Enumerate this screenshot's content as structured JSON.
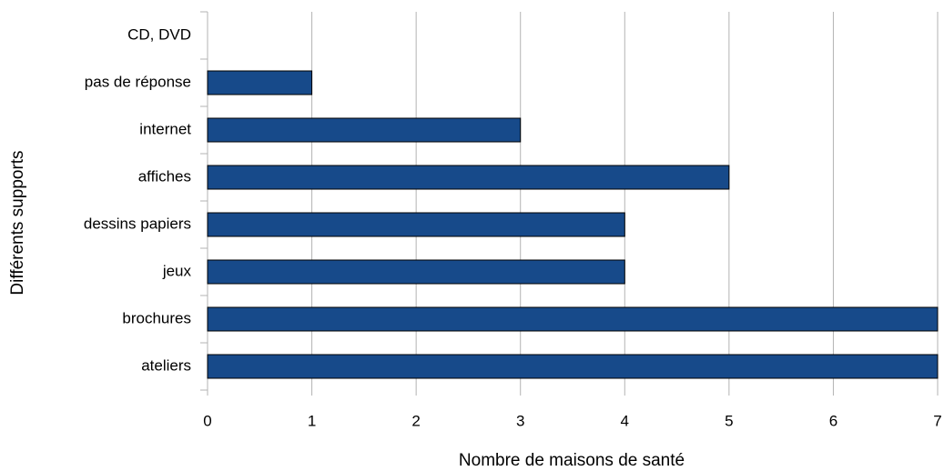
{
  "chart_data": {
    "type": "barh",
    "xlabel": "Nombre de maisons de santé",
    "ylabel": "Différents supports",
    "categories": [
      "ateliers",
      "brochures",
      "jeux",
      "dessins papiers",
      "affiches",
      "internet",
      "pas de réponse",
      "CD, DVD"
    ],
    "values": [
      7,
      7,
      4,
      4,
      5,
      3,
      1,
      0
    ],
    "color": "#174a8a",
    "xlim": [
      0,
      7
    ],
    "xticks": [
      0,
      1,
      2,
      3,
      4,
      5,
      6,
      7
    ],
    "grid": true
  }
}
